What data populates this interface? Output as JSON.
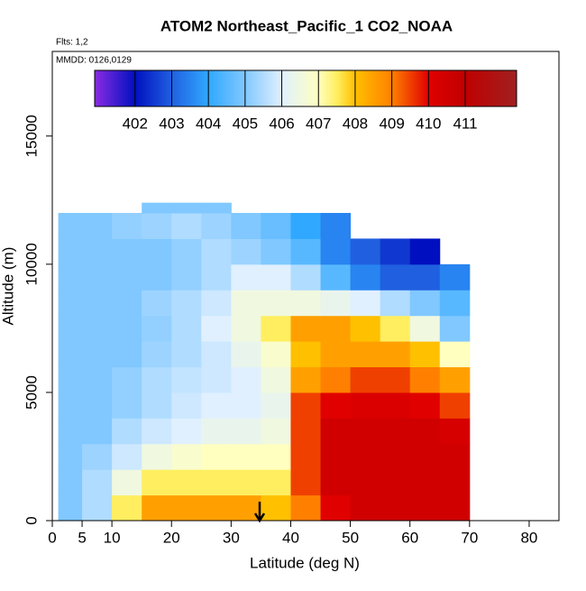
{
  "chart_data": {
    "type": "heatmap",
    "title": "ATOM2 Northeast_Pacific_1 CO2_NOAA",
    "annotations": [
      "Flts: 1,2",
      "MMDD: 0126,0129"
    ],
    "x_label": "Latitude (deg N)",
    "y_label": "Altitude (m)",
    "xlim": [
      0,
      85
    ],
    "xticks": [
      0,
      5,
      10,
      20,
      30,
      40,
      50,
      60,
      70,
      80
    ],
    "ylim": [
      0,
      18300
    ],
    "yticks": [
      0,
      5000,
      10000,
      15000
    ],
    "lat_edges": [
      1,
      5,
      10,
      15,
      20,
      25,
      30,
      35,
      40,
      45,
      50,
      55,
      60,
      65,
      70
    ],
    "alt_edges": [
      0,
      1000,
      2000,
      3000,
      4000,
      5000,
      6000,
      7000,
      8000,
      9000,
      10000,
      11000,
      12000,
      12400
    ],
    "z": [
      [
        405,
        405.5,
        407.5,
        408.5,
        408.5,
        408.5,
        408.5,
        408,
        409,
        410,
        410.5,
        410.5,
        410.5,
        410.5
      ],
      [
        405,
        405.5,
        406.5,
        407.5,
        407.5,
        407.5,
        407.5,
        407.5,
        409.5,
        410.5,
        410.5,
        410.5,
        410.5,
        410.5
      ],
      [
        405,
        405.3,
        405.8,
        406.5,
        406.8,
        407,
        407,
        407,
        409.5,
        410.5,
        410.5,
        410.5,
        410.5,
        410.5
      ],
      [
        405,
        405,
        405.5,
        405.8,
        406,
        406.3,
        406.3,
        406.5,
        409.5,
        410.5,
        410.5,
        410.5,
        410.5,
        410.3
      ],
      [
        405,
        405,
        405.2,
        405.5,
        405.8,
        406,
        406,
        406.3,
        409.5,
        410,
        410.2,
        410.2,
        410,
        409.5
      ],
      [
        405,
        405,
        405.2,
        405.5,
        405.7,
        405.8,
        406,
        406.5,
        408.5,
        409,
        409.5,
        409.5,
        409,
        408.5
      ],
      [
        405,
        405,
        405,
        405.3,
        405.5,
        405.8,
        406.3,
        406.8,
        408,
        408.5,
        408.5,
        408.5,
        408,
        407
      ],
      [
        405,
        405,
        405,
        405.2,
        405.5,
        406,
        406.5,
        407.5,
        408.5,
        408.5,
        408,
        407.5,
        406.5,
        405
      ],
      [
        405,
        405,
        405,
        405.3,
        405.5,
        405.8,
        406.5,
        406.5,
        406.5,
        406.3,
        406,
        405.5,
        405,
        404.5
      ],
      [
        405,
        405,
        405,
        405,
        405.2,
        405.5,
        406,
        406,
        405.5,
        404.5,
        403.5,
        403,
        403,
        403.5
      ],
      [
        405,
        405,
        405,
        405,
        405.2,
        405.5,
        405.3,
        405,
        404.5,
        403.5,
        403,
        402.5,
        402,
        null
      ],
      [
        405,
        405,
        405.2,
        405.3,
        405.5,
        405.3,
        405,
        404.7,
        404,
        403.5,
        null,
        null,
        null,
        null
      ],
      [
        null,
        null,
        null,
        405,
        405,
        405,
        null,
        null,
        null,
        null,
        null,
        null,
        null,
        null
      ]
    ],
    "colorbar_lim": [
      400.9,
      412.4
    ],
    "colorbar_ticks": [
      402,
      403,
      404,
      405,
      406,
      407,
      408,
      409,
      410,
      411
    ],
    "colorscale": [
      [
        400.9,
        "#8a2be2"
      ],
      [
        402,
        "#0010c0"
      ],
      [
        403,
        "#2060e0"
      ],
      [
        404,
        "#30a8ff"
      ],
      [
        405,
        "#80c8ff"
      ],
      [
        406,
        "#e0f0ff"
      ],
      [
        407,
        "#ffffc0"
      ],
      [
        407.5,
        "#ffee60"
      ],
      [
        408,
        "#ffc000"
      ],
      [
        409,
        "#ff8000"
      ],
      [
        410,
        "#e00000"
      ],
      [
        411,
        "#c00000"
      ],
      [
        412.4,
        "#a02020"
      ]
    ]
  }
}
